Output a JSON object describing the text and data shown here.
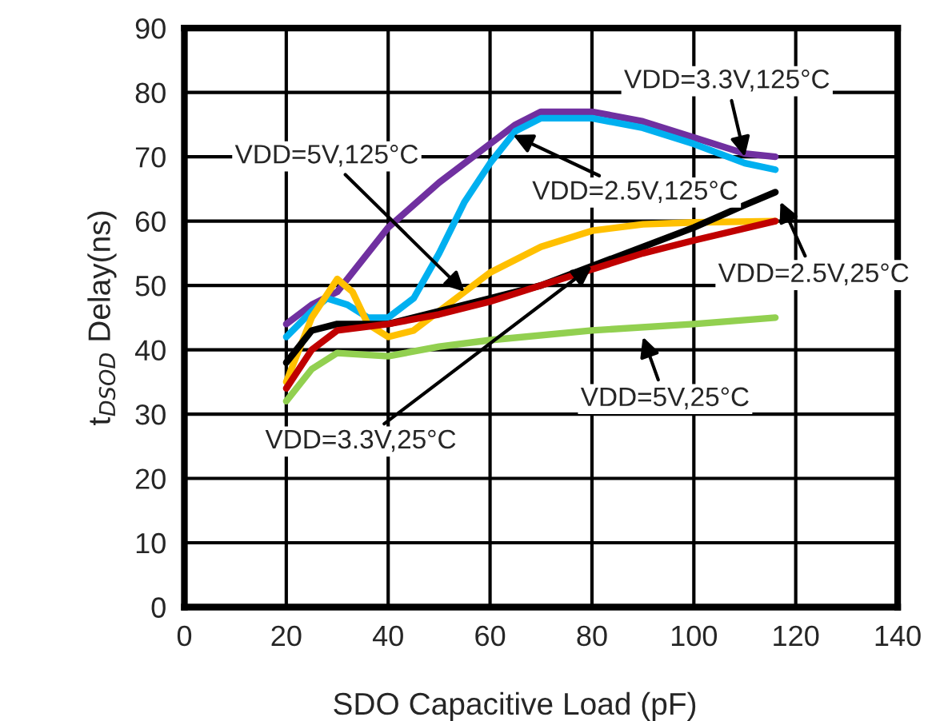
{
  "chart_data": {
    "type": "line",
    "xlabel": "SDO Capacitive Load (pF)",
    "ylabel": "t$_{DSOD}$ Delay(ns)",
    "xlim": [
      0,
      140
    ],
    "xticks": [
      0,
      20,
      40,
      60,
      80,
      100,
      120,
      140
    ],
    "ylim": [
      0,
      90
    ],
    "yticks": [
      0,
      10,
      20,
      30,
      40,
      50,
      60,
      70,
      80,
      90
    ],
    "grid": true,
    "series": [
      {
        "color": "#7030a0",
        "x": [
          20,
          25,
          30,
          35,
          40,
          50,
          60,
          65,
          70,
          80,
          90,
          100,
          110,
          116
        ],
        "values": [
          44,
          47,
          49,
          54,
          59,
          66,
          72,
          75,
          77,
          77,
          75.5,
          73,
          70.5,
          70
        ]
      },
      {
        "color": "#00b0f0",
        "x": [
          20,
          25,
          28,
          32,
          36,
          40,
          45,
          50,
          55,
          60,
          65,
          70,
          80,
          90,
          100,
          110,
          116
        ],
        "values": [
          42,
          46,
          48,
          47,
          45,
          45,
          48,
          55,
          63,
          69,
          74,
          76,
          76,
          74.5,
          72,
          69,
          68
        ]
      },
      {
        "color": "#ffc000",
        "x": [
          20,
          25,
          30,
          33,
          36,
          40,
          45,
          50,
          60,
          70,
          80,
          90,
          100,
          116
        ],
        "values": [
          35,
          45,
          51,
          49,
          44,
          42,
          43,
          46,
          52,
          56,
          58.5,
          59.5,
          59.8,
          60
        ]
      },
      {
        "color": "#000000",
        "x": [
          20,
          25,
          30,
          40,
          50,
          60,
          70,
          80,
          90,
          100,
          110,
          116
        ],
        "values": [
          38,
          43,
          44,
          44,
          46,
          48,
          50,
          53,
          56,
          59,
          62.5,
          64.5
        ]
      },
      {
        "color": "#c00000",
        "x": [
          20,
          25,
          30,
          40,
          50,
          60,
          70,
          80,
          90,
          100,
          116
        ],
        "values": [
          34,
          40,
          43,
          44,
          45.5,
          47.5,
          50,
          52.5,
          55,
          57,
          60
        ]
      },
      {
        "color": "#92d050",
        "x": [
          20,
          25,
          30,
          40,
          50,
          60,
          80,
          100,
          116
        ],
        "values": [
          32,
          37,
          39.5,
          39,
          40.5,
          41.5,
          43,
          44,
          45
        ]
      }
    ],
    "annotations": [
      {
        "text": "VDD=3.3V,125°C",
        "x": 110,
        "y": 70
      },
      {
        "text": "VDD=5V,125°C",
        "x": 55,
        "y": 49
      },
      {
        "text": "VDD=2.5V,125°C",
        "x": 64.5,
        "y": 73.4
      },
      {
        "text": "VDD=2.5V,25°C",
        "x": 117,
        "y": 63
      },
      {
        "text": "VDD=3.3V,25°C",
        "x": 80,
        "y": 53
      },
      {
        "text": "VDD=5V,25°C",
        "x": 90,
        "y": 42
      }
    ]
  }
}
